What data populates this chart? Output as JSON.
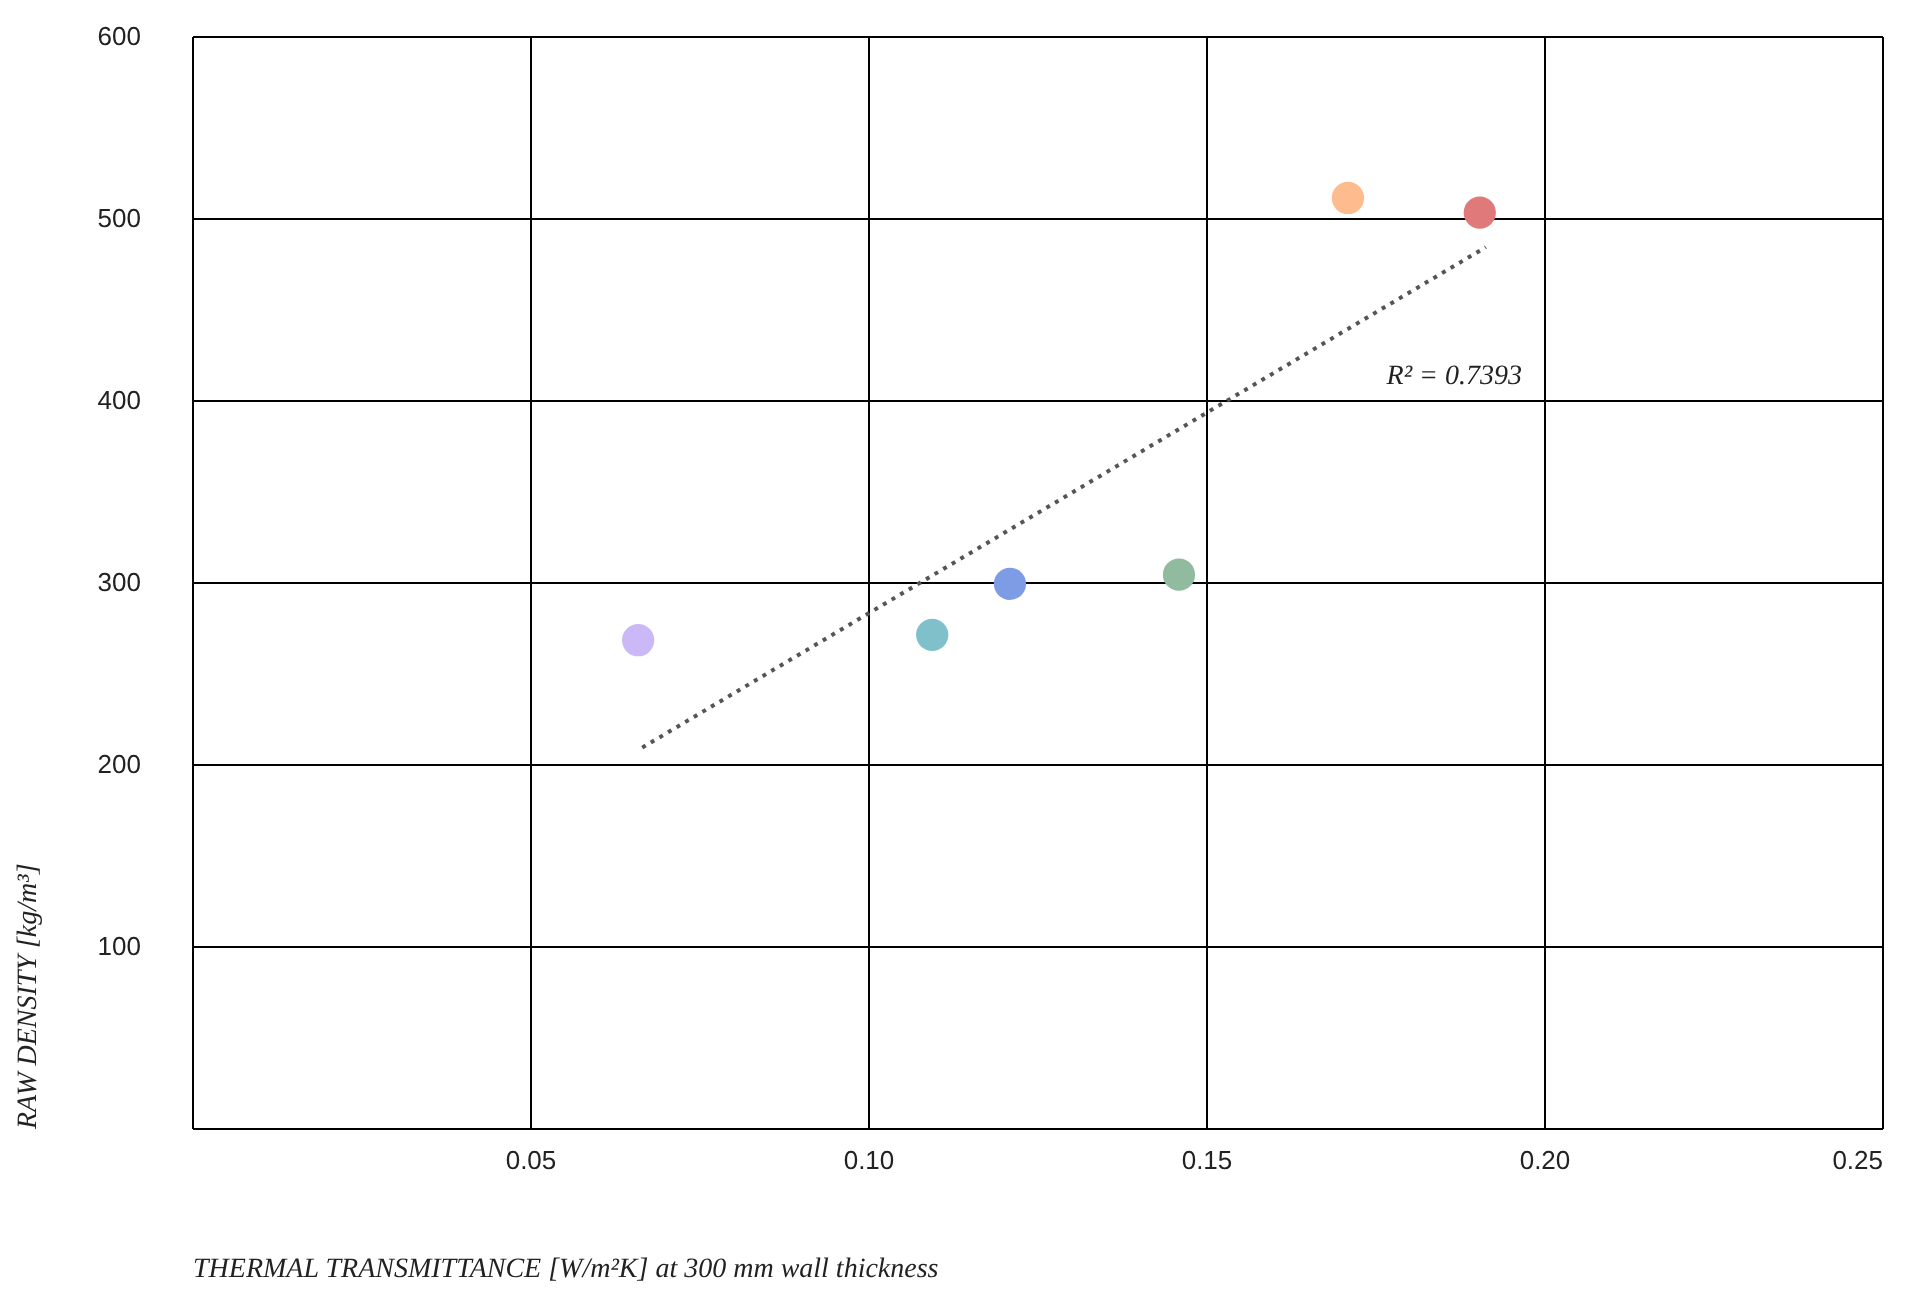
{
  "chart_data": {
    "type": "scatter",
    "xlabel": "THERMAL TRANSMITTANCE [W/m²K] at 300 mm wall thickness",
    "ylabel": "RAW DENSITY [kg/m³]",
    "xlim": [
      0,
      0.25
    ],
    "ylim": [
      0,
      600
    ],
    "xticks": [
      {
        "value": 0,
        "label": null
      },
      0.05,
      {
        "value": 0.1,
        "label": "0.10"
      },
      0.15,
      {
        "value": 0.2,
        "label": "0.20"
      },
      0.25
    ],
    "yticks": [
      {
        "value": 0,
        "label": null
      },
      100,
      200,
      300,
      400,
      500,
      600
    ],
    "grid": true,
    "legend": false,
    "marker": "circle",
    "series": [
      {
        "x": [
          0.066,
          0.1095,
          0.121,
          0.146,
          0.171,
          0.1905
        ],
        "values": [
          268,
          271,
          299,
          304,
          511,
          503
        ],
        "colors": [
          "#cbb8f7",
          "#80c0cb",
          "#7e9be6",
          "#90bb9f",
          "#fdbb8e",
          "#e07a7a"
        ]
      },
      {
        "type": "line",
        "x": [
          0.0666,
          0.1914
        ],
        "values": [
          209,
          484
        ],
        "color": "#555555",
        "line_style": "dotted",
        "marker": "none"
      }
    ],
    "annotations": [
      "R² = 0.7393"
    ]
  }
}
